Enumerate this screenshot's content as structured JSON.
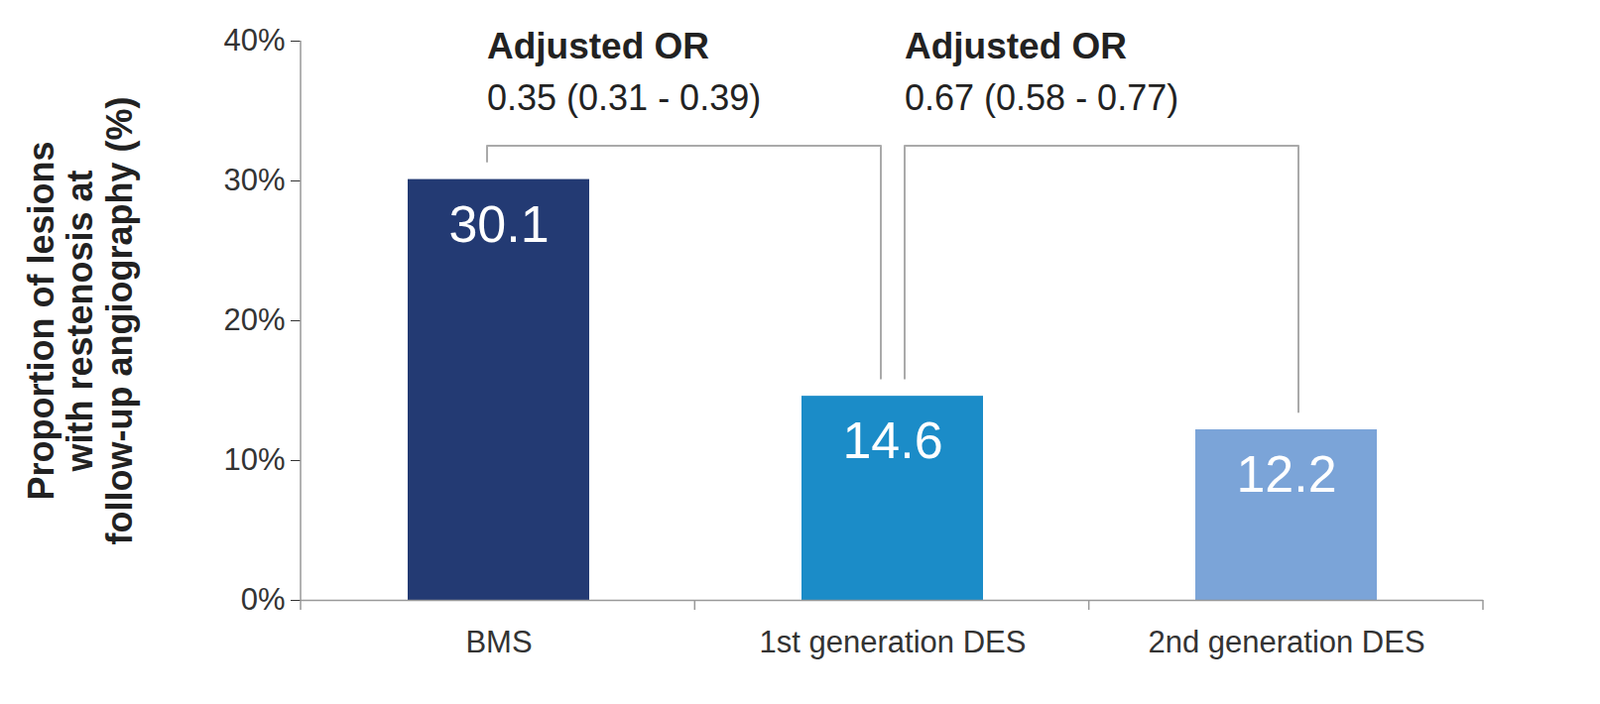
{
  "chart_data": {
    "type": "bar",
    "categories": [
      "BMS",
      "1st generation DES",
      "2nd generation DES"
    ],
    "values": [
      30.1,
      14.6,
      12.2
    ],
    "colors": [
      "#233a73",
      "#1b8cc8",
      "#7ba4d8"
    ],
    "ylim": [
      0,
      40
    ],
    "yticks": [
      {
        "value": 0,
        "label": "0%"
      },
      {
        "value": 10,
        "label": "10%"
      },
      {
        "value": 20,
        "label": "20%"
      },
      {
        "value": 30,
        "label": "30%"
      },
      {
        "value": 40,
        "label": "40%"
      }
    ],
    "y_label": "Proportion of lesions\nwith restenosis at\nfollow-up angiography (%)",
    "data_labels": true,
    "annotations": [
      {
        "from": "BMS",
        "to": "1st generation DES",
        "title": "Adjusted OR",
        "text": "0.35 (0.31 - 0.39)"
      },
      {
        "from": "1st generation DES",
        "to": "2nd generation DES",
        "title": "Adjusted OR",
        "text": "0.67 (0.58 - 0.77)"
      }
    ]
  }
}
